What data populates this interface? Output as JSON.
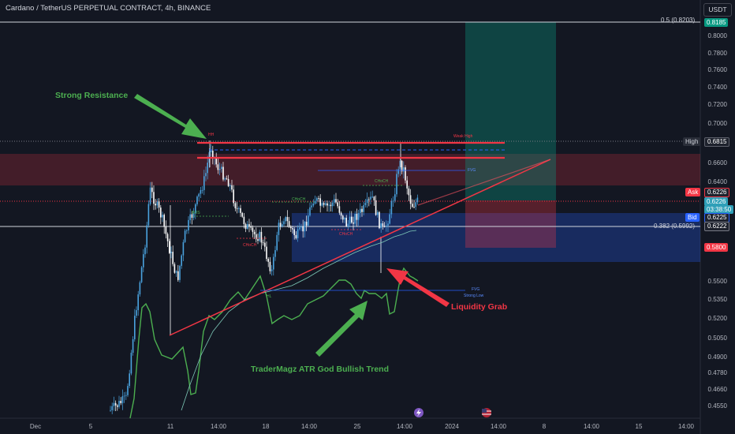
{
  "header": {
    "title": "Cardano / TetherUS PERPETUAL CONTRACT, 4h, BINANCE",
    "currency": "USDT"
  },
  "annotations": {
    "strong_resistance": "Strong Resistance",
    "liquidity_grab": "Liquidity Grab",
    "trend": "TraderMagz ATR God Bullish Trend"
  },
  "small_labels": {
    "hh": "HH",
    "weak_high": "Weak High",
    "fvg_top": "FVG",
    "fvg_bottom": "FVG",
    "bos": "BOS",
    "choch_1": "CHoCH",
    "choch_2": "CHoCH",
    "choch_3": "CHoCH",
    "choch_4": "CHoCH",
    "hl": "HL",
    "strong_low": "Strong Low"
  },
  "price_axis": {
    "ticks": [
      "0.8000",
      "0.7800",
      "0.7600",
      "0.7400",
      "0.7200",
      "0.7000",
      "0.6600",
      "0.6400",
      "0.5500",
      "0.5350",
      "0.5200",
      "0.5050",
      "0.4900",
      "0.4780",
      "0.4660",
      "0.4550"
    ]
  },
  "time_axis": {
    "ticks": [
      "Dec",
      "5",
      "11",
      "14:00",
      "18",
      "14:00",
      "25",
      "14:00",
      "2024",
      "14:00",
      "8",
      "14:00",
      "15",
      "14:00"
    ]
  },
  "fib_levels": {
    "top": "0.5 (0.8203)",
    "mid": "0.382 (0.5992)"
  },
  "price_badges": {
    "fib_top": "0.8185",
    "high_label": "High",
    "high_value": "0.6815",
    "ask_label": "Ask",
    "ask_value": "0.6226",
    "last_price": "0.6226",
    "countdown": "03:38:50",
    "bid_label": "Bid",
    "bid_value": "0.6225",
    "fib_mid": "0.6222",
    "stop": "0.5800"
  },
  "colors": {
    "background": "#131722",
    "up": "#4aa3df",
    "down": "#ffffff",
    "resistance_zone": "#f23645",
    "support_zone": "#2962ff",
    "target_zone": "#089981",
    "trend_line": "#4caf50",
    "annotation_green": "#4caf50",
    "annotation_red": "#f23645"
  },
  "icons": {
    "event_1": "lightning-icon",
    "event_2": "us-flag-icon"
  }
}
